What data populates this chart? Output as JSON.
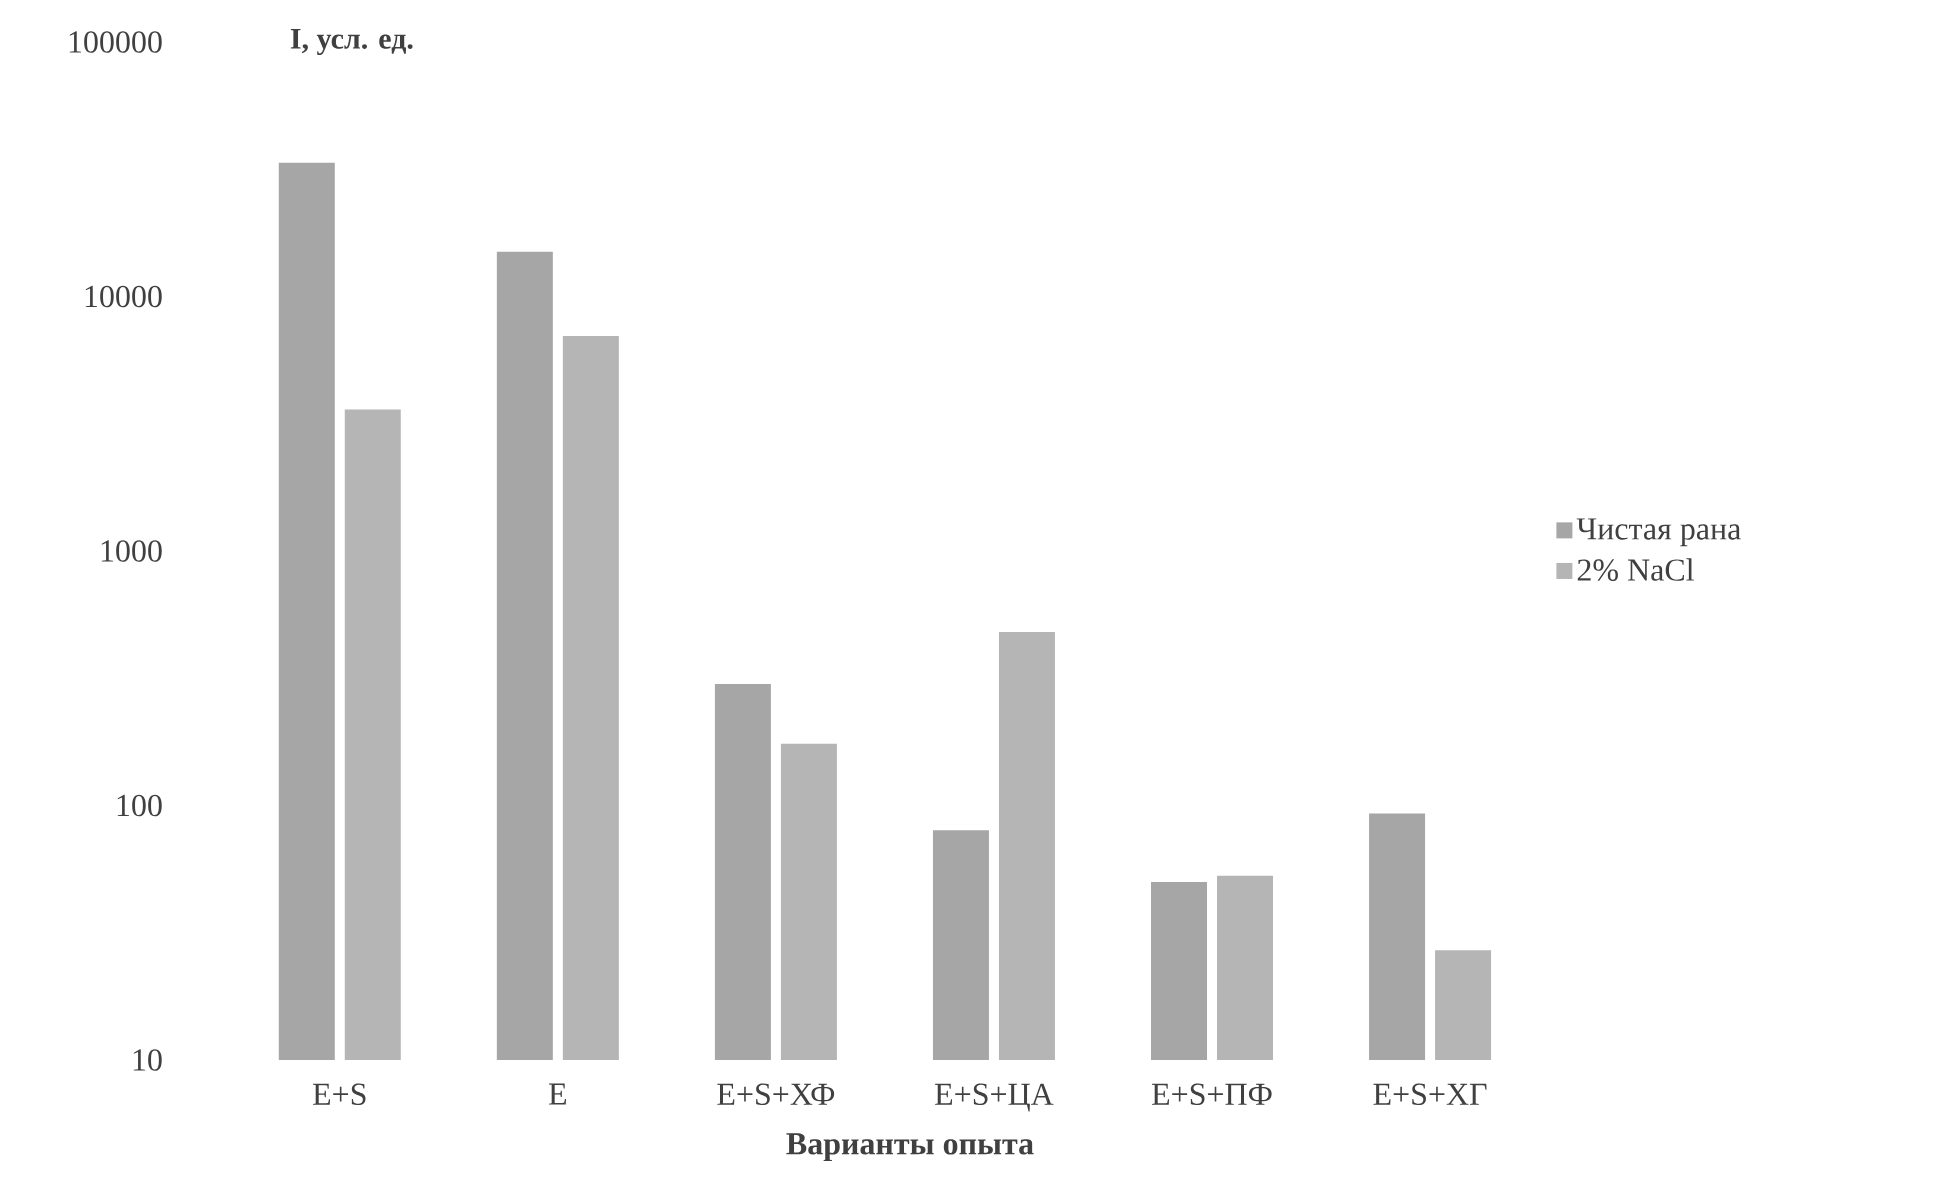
{
  "chart_data": {
    "type": "bar",
    "xlabel": "Варианты опыта",
    "ylabel": "I, усл. ед.",
    "categories": [
      "E+S",
      "E",
      "E+S+ХФ",
      "E+S+ЦА",
      "E+S+ПФ",
      "E+S+ХГ"
    ],
    "series": [
      {
        "name": "Чистая рана",
        "color": "#a6a6a6",
        "values": [
          33500,
          15000,
          300,
          80,
          50,
          93
        ]
      },
      {
        "name": "2% NaCl",
        "color": "#b5b5b5",
        "values": [
          3600,
          7000,
          175,
          480,
          53,
          27
        ]
      }
    ],
    "ylim": [
      10,
      100000
    ],
    "yticks": [
      10,
      100,
      1000,
      10000,
      100000
    ],
    "log": "y",
    "legend": "right"
  }
}
